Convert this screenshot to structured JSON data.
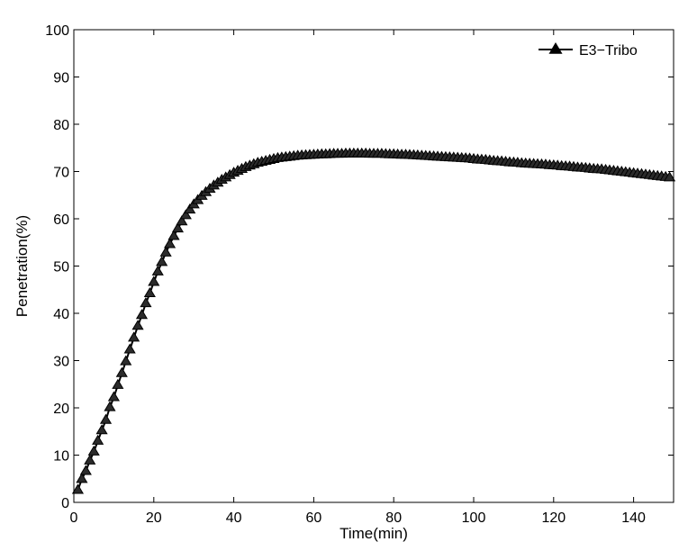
{
  "chart_data": {
    "type": "line",
    "xlabel": "Time(min)",
    "ylabel": "Penetration(%)",
    "xlim": [
      0,
      150
    ],
    "ylim": [
      0,
      100
    ],
    "x_ticks": [
      "0",
      "20",
      "40",
      "60",
      "80",
      "100",
      "120",
      "140"
    ],
    "y_ticks": [
      "0",
      "10",
      "20",
      "30",
      "40",
      "50",
      "60",
      "70",
      "80",
      "90",
      "100"
    ],
    "grid": false,
    "legend_position": "top-right",
    "series": [
      {
        "name": "E3−Tribo",
        "color": "#000000",
        "marker": "triangle",
        "x": [
          1,
          2,
          3,
          4,
          5,
          6,
          7,
          8,
          9,
          10,
          11,
          12,
          13,
          14,
          15,
          16,
          17,
          18,
          19,
          20,
          21,
          22,
          23,
          24,
          25,
          26,
          27,
          28,
          29,
          30,
          31,
          32,
          33,
          34,
          35,
          36,
          37,
          38,
          39,
          40,
          41,
          42,
          43,
          44,
          45,
          46,
          47,
          48,
          49,
          50,
          51,
          52,
          53,
          54,
          55,
          56,
          57,
          58,
          59,
          60,
          61,
          62,
          63,
          64,
          65,
          66,
          67,
          68,
          69,
          70,
          71,
          72,
          73,
          74,
          75,
          76,
          77,
          78,
          79,
          80,
          81,
          82,
          83,
          84,
          85,
          86,
          87,
          88,
          89,
          90,
          91,
          92,
          93,
          94,
          95,
          96,
          97,
          98,
          99,
          100,
          101,
          102,
          103,
          104,
          105,
          106,
          107,
          108,
          109,
          110,
          111,
          112,
          113,
          114,
          115,
          116,
          117,
          118,
          119,
          120,
          121,
          122,
          123,
          124,
          125,
          126,
          127,
          128,
          129,
          130,
          131,
          132,
          133,
          134,
          135,
          136,
          137,
          138,
          139,
          140,
          141,
          142,
          143,
          144,
          145,
          146,
          147,
          148,
          149
        ],
        "y": [
          2.6,
          4.9,
          6.6,
          8.8,
          10.7,
          13.0,
          15.2,
          17.4,
          20.1,
          22.2,
          24.8,
          27.3,
          29.8,
          32.3,
          34.8,
          37.3,
          39.6,
          42.1,
          44.2,
          46.6,
          48.8,
          50.8,
          52.8,
          54.6,
          56.3,
          57.9,
          59.4,
          60.7,
          61.9,
          63.0,
          63.9,
          64.8,
          65.6,
          66.3,
          67.0,
          67.6,
          68.2,
          68.7,
          69.2,
          69.7,
          70.1,
          70.5,
          70.9,
          71.2,
          71.5,
          71.8,
          72.0,
          72.2,
          72.4,
          72.6,
          72.8,
          72.9,
          73.0,
          73.1,
          73.2,
          73.3,
          73.35,
          73.4,
          73.45,
          73.5,
          73.55,
          73.6,
          73.6,
          73.65,
          73.7,
          73.7,
          73.7,
          73.75,
          73.75,
          73.75,
          73.75,
          73.75,
          73.75,
          73.7,
          73.7,
          73.7,
          73.7,
          73.65,
          73.6,
          73.6,
          73.55,
          73.5,
          73.5,
          73.45,
          73.4,
          73.35,
          73.3,
          73.25,
          73.2,
          73.15,
          73.1,
          73.05,
          73.0,
          72.95,
          72.9,
          72.85,
          72.8,
          72.75,
          72.7,
          72.6,
          72.5,
          72.45,
          72.4,
          72.3,
          72.2,
          72.15,
          72.1,
          72.0,
          71.9,
          71.85,
          71.8,
          71.7,
          71.65,
          71.6,
          71.55,
          71.5,
          71.45,
          71.4,
          71.3,
          71.25,
          71.2,
          71.1,
          71.05,
          71.0,
          70.9,
          70.8,
          70.75,
          70.7,
          70.6,
          70.5,
          70.45,
          70.4,
          70.3,
          70.2,
          70.1,
          70.0,
          69.9,
          69.8,
          69.7,
          69.6,
          69.5,
          69.4,
          69.3,
          69.2,
          69.1,
          69.0,
          68.9,
          68.8,
          68.7
        ]
      }
    ]
  }
}
